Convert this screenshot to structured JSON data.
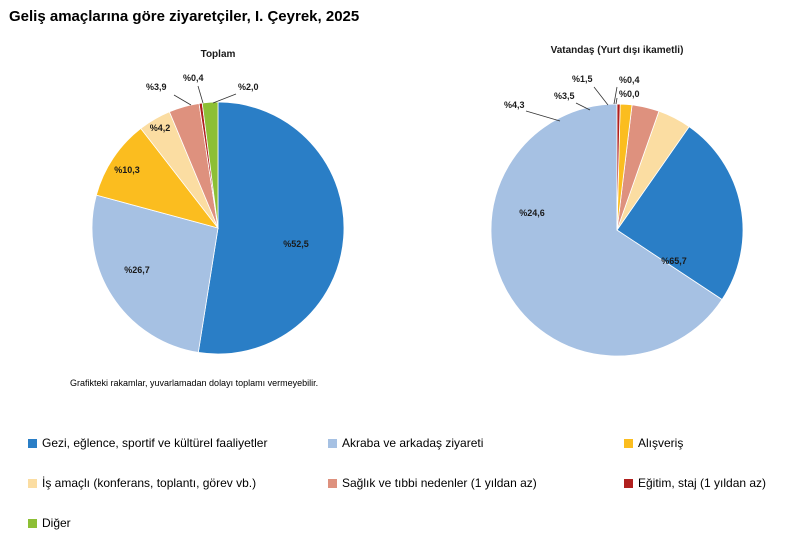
{
  "title": "Geliş amaçlarına göre ziyaretçiler, I. Çeyrek, 2025",
  "note": "Grafikteki rakamlar, yuvarlamadan dolayı toplamı vermeyebilir.",
  "chart_data": [
    {
      "type": "pie",
      "title": "Toplam",
      "categories": [
        "Gezi, eğlence, sportif ve kültürel faaliyetler",
        "Akraba ve arkadaş ziyareti",
        "Alışveriş",
        "İş amaçlı (konferans, toplantı, görev vb.)",
        "Sağlık ve tıbbi nedenler (1 yıldan az)",
        "Eğitim, staj (1 yıldan az)",
        "Diğer"
      ],
      "values": [
        52.5,
        26.7,
        10.3,
        4.2,
        3.9,
        0.4,
        2.0
      ],
      "labels": [
        "%52,5",
        "%26,7",
        "%10,3",
        "%4,2",
        "%3,9",
        "%0,4",
        "%2,0"
      ]
    },
    {
      "type": "pie",
      "title": "Vatandaş (Yurt dışı ikametli)",
      "categories": [
        "Akraba ve arkadaş ziyareti",
        "Gezi, eğlence, sportif ve kültürel faaliyetler",
        "İş amaçlı (konferans, toplantı, görev vb.)",
        "Sağlık ve tıbbi nedenler (1 yıldan az)",
        "Alışveriş",
        "Eğitim, staj (1 yıldan az)",
        "Diğer"
      ],
      "values": [
        65.7,
        24.6,
        4.3,
        3.5,
        1.5,
        0.4,
        0.0
      ],
      "labels": [
        "%65,7",
        "%24,6",
        "%4,3",
        "%3,5",
        "%1,5",
        "%0,4",
        "%0,0"
      ]
    }
  ],
  "legend": [
    {
      "label": "Gezi, eğlence, sportif ve kültürel faaliyetler",
      "color": "#2A7EC6"
    },
    {
      "label": "Akraba ve arkadaş ziyareti",
      "color": "#A6C1E3"
    },
    {
      "label": "Alışveriş",
      "color": "#FBBD1F"
    },
    {
      "label": "İş amaçlı (konferans, toplantı, görev vb.)",
      "color": "#FBDDA2"
    },
    {
      "label": "Sağlık ve tıbbi nedenler (1 yıldan az)",
      "color": "#DE917E"
    },
    {
      "label": "Eğitim, staj (1 yıldan az)",
      "color": "#B0201E"
    },
    {
      "label": "Diğer",
      "color": "#8DBF35"
    }
  ]
}
